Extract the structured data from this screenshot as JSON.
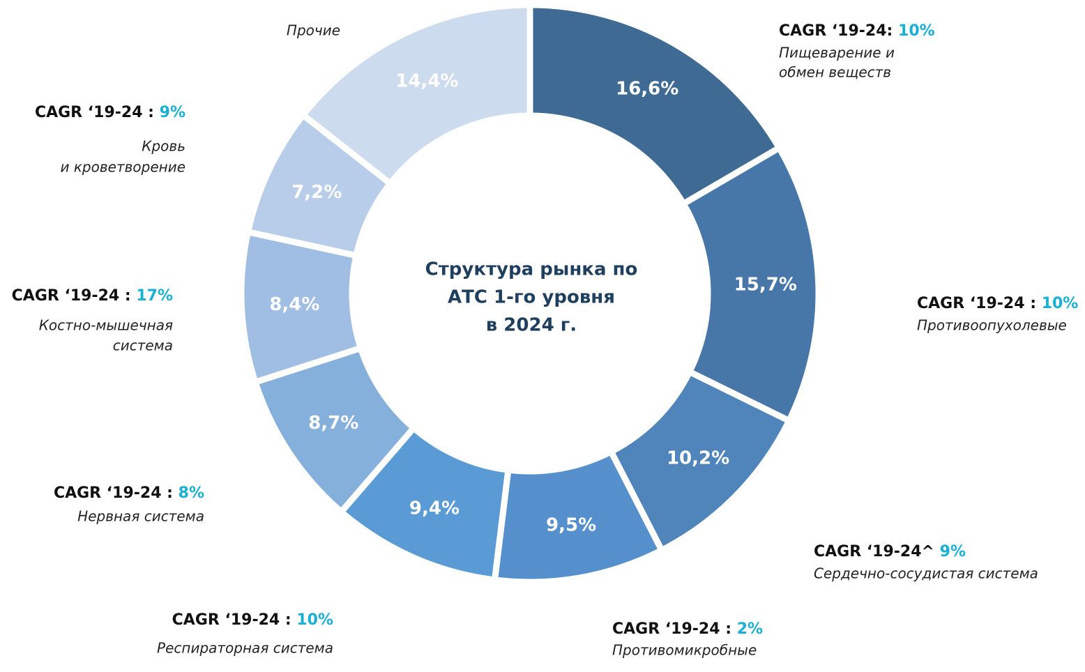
{
  "chart_data": {
    "type": "donut",
    "title": [
      "Структура рынка по",
      "АТС 1-го уровня",
      "в 2024 г."
    ],
    "categories": [
      [
        "Пищеварение и",
        "обмен веществ"
      ],
      [
        "Противоопухолевые"
      ],
      [
        "Сердечно-сосудистая система"
      ],
      [
        "Противомикробные"
      ],
      [
        "Респираторная система"
      ],
      [
        "Нервная система"
      ],
      [
        "Костно-мышечная",
        "система"
      ],
      [
        "Кровь",
        "и кроветворение"
      ],
      [
        "Прочие"
      ]
    ],
    "values": [
      16.6,
      15.7,
      10.2,
      9.5,
      9.4,
      8.7,
      8.4,
      7.2,
      14.4
    ],
    "value_labels": [
      "16,6%",
      "15,7%",
      "10,2%",
      "9,5%",
      "9,4%",
      "8,7%",
      "8,4%",
      "7,2%",
      "14,4%"
    ],
    "colors": [
      "#3e6a94",
      "#4677a8",
      "#5085bb",
      "#5690cc",
      "#5b9bd5",
      "#86b0dc",
      "#a0bde3",
      "#b8cde9",
      "#cddbee"
    ],
    "annotations": [
      {
        "label": "CAGR ‘19-24:",
        "value": "10%"
      },
      {
        "label": "CAGR ‘19-24 :",
        "value": "10%"
      },
      {
        "label": "CAGR ‘19-24^",
        "value": "9%"
      },
      {
        "label": "CAGR ‘19-24 :",
        "value": "2%"
      },
      {
        "label": "CAGR ‘19-24 :",
        "value": "10%"
      },
      {
        "label": "CAGR ‘19-24 :",
        "value": "8%"
      },
      {
        "label": "CAGR ‘19-24 :",
        "value": "17%"
      },
      {
        "label": "CAGR ‘19-24 :",
        "value": "9%"
      },
      null
    ]
  }
}
